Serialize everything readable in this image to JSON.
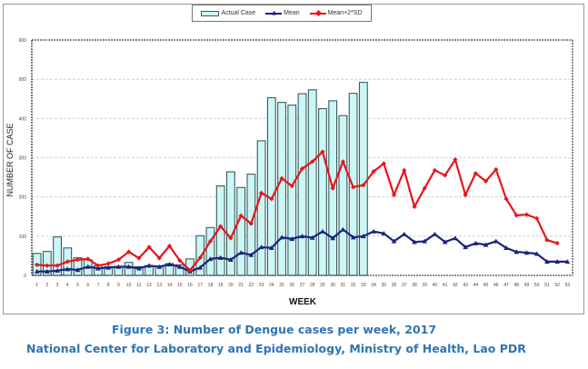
{
  "chart_data": {
    "type": "bar",
    "title": "",
    "xlabel": "WEEK",
    "ylabel": "NUMBER OF CASE",
    "ylim": [
      0,
      600
    ],
    "yticks": [
      0,
      100,
      200,
      300,
      400,
      500,
      600
    ],
    "grid": true,
    "legend_position": "top-center",
    "categories": [
      "1",
      "2",
      "3",
      "4",
      "5",
      "6",
      "7",
      "8",
      "9",
      "10",
      "11",
      "12",
      "13",
      "14",
      "15",
      "16",
      "17",
      "18",
      "19",
      "20",
      "21",
      "22",
      "23",
      "24",
      "25",
      "26",
      "27",
      "28",
      "29",
      "30",
      "31",
      "32",
      "33",
      "34",
      "35",
      "36",
      "37",
      "38",
      "39",
      "40",
      "41",
      "42",
      "43",
      "44",
      "45",
      "46",
      "47",
      "48",
      "49",
      "50",
      "51",
      "52",
      "53"
    ],
    "series": [
      {
        "name": "Actual Case",
        "kind": "bar",
        "color": "#ccf7f7",
        "edge": "#3d5a5a",
        "values": [
          56,
          61,
          98,
          70,
          45,
          40,
          25,
          22,
          23,
          33,
          22,
          25,
          22,
          30,
          27,
          42,
          101,
          122,
          228,
          264,
          224,
          258,
          343,
          453,
          441,
          434,
          463,
          473,
          425,
          445,
          407,
          464,
          492,
          null,
          null,
          null,
          null,
          null,
          null,
          null,
          null,
          null,
          null,
          null,
          null,
          null,
          null,
          null,
          null,
          null,
          null,
          null,
          null
        ]
      },
      {
        "name": "Mean",
        "kind": "line",
        "color": "#1a237e",
        "marker": "triangle",
        "values": [
          10,
          10,
          12,
          16,
          14,
          22,
          18,
          20,
          22,
          22,
          18,
          25,
          22,
          28,
          22,
          10,
          20,
          42,
          45,
          40,
          58,
          52,
          72,
          70,
          97,
          93,
          100,
          96,
          112,
          95,
          117,
          97,
          100,
          112,
          107,
          87,
          105,
          85,
          87,
          105,
          85,
          95,
          72,
          82,
          78,
          87,
          70,
          60,
          58,
          55,
          35,
          35,
          35
        ]
      },
      {
        "name": "Mean+2*SD",
        "kind": "line",
        "color": "#e8141c",
        "marker": "diamond",
        "values": [
          27,
          25,
          25,
          35,
          40,
          42,
          25,
          30,
          40,
          60,
          44,
          72,
          44,
          75,
          38,
          13,
          45,
          87,
          125,
          95,
          152,
          132,
          210,
          195,
          247,
          228,
          272,
          290,
          315,
          222,
          290,
          225,
          230,
          265,
          285,
          205,
          268,
          175,
          222,
          268,
          255,
          295,
          205,
          260,
          240,
          270,
          195,
          153,
          155,
          145,
          90,
          82,
          null
        ]
      }
    ]
  },
  "legend": {
    "actual": "Actual Case",
    "mean": "Mean",
    "mean2sd": "Mean+2*SD"
  },
  "captions": {
    "line1": "Figure 3: Number of Dengue cases per week, 2017",
    "line2": "National Center for Laboratory and Epidemiology, Ministry of Health, Lao PDR"
  }
}
